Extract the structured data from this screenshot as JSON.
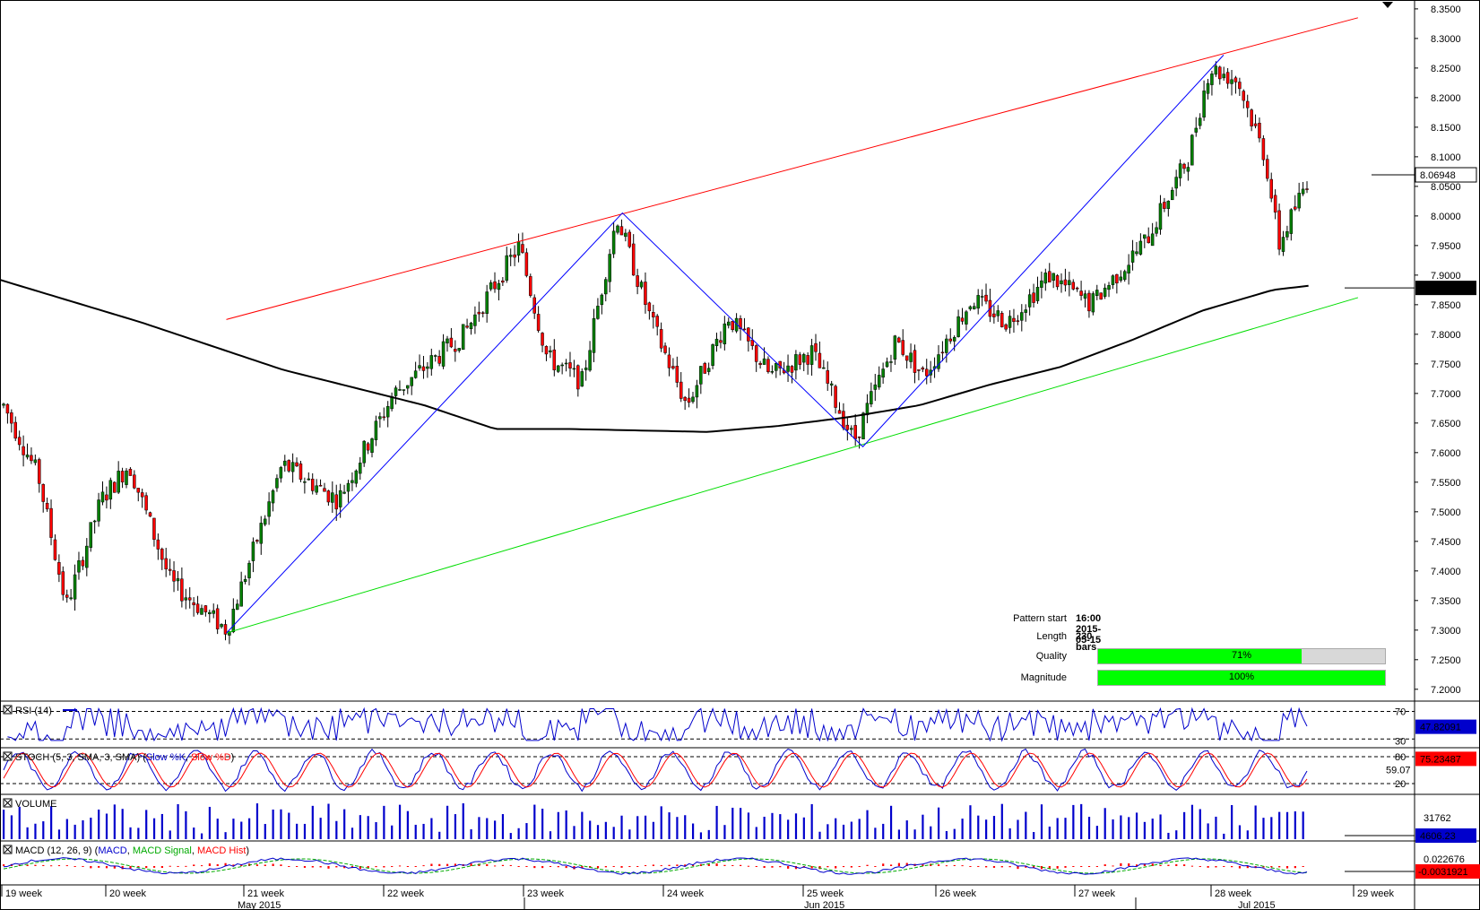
{
  "chart_data": {
    "type": "candlestick",
    "price_axis": {
      "ylim": [
        7.18,
        8.365
      ],
      "ticks": [
        "8.3500",
        "8.3000",
        "8.2500",
        "8.2000",
        "8.1500",
        "8.1000",
        "8.0500",
        "8.0000",
        "7.9500",
        "7.9000",
        "7.8500",
        "7.8000",
        "7.7500",
        "7.7000",
        "7.6500",
        "7.6000",
        "7.5500",
        "7.5000",
        "7.4500",
        "7.4000",
        "7.3500",
        "7.3000",
        "7.2500",
        "7.2000"
      ],
      "current_price": "8.06948",
      "ma_value": "7.87837"
    },
    "x_axis": {
      "week_labels": [
        "19 week",
        "20 week",
        "21 week",
        "22 week",
        "23 week",
        "24 week",
        "25 week",
        "26 week",
        "27 week",
        "28 week",
        "29 week"
      ],
      "month_labels": [
        "May 2015",
        "Jun 2015",
        "Jul 2015"
      ]
    },
    "pattern_lines": {
      "resistance": {
        "start": [
          0.16,
          7.825
        ],
        "end": [
          0.96,
          8.335
        ]
      },
      "support": {
        "start": [
          0.16,
          7.295
        ],
        "end": [
          0.96,
          7.862
        ]
      },
      "zigzag": [
        [
          0.16,
          7.295
        ],
        [
          0.44,
          8.005
        ],
        [
          0.61,
          7.61
        ],
        [
          0.865,
          8.272
        ]
      ]
    },
    "pattern_info": {
      "pattern_start_label": "Pattern start",
      "pattern_start_value": "16:00 2015-05-15",
      "length_label": "Length",
      "length_value": "230 bars",
      "quality_label": "Quality",
      "quality_value": "71%",
      "quality_pct": 71,
      "magnitude_label": "Magnitude",
      "magnitude_value": "100%",
      "magnitude_pct": 100
    },
    "indicators": {
      "rsi": {
        "label": "RSI (14)",
        "levels": [
          "70",
          "30"
        ],
        "value": "47.82091"
      },
      "stoch": {
        "label_prefix": "STOCH (5, 3, SMA, 3, SMA) (",
        "k_label": "Slow %K",
        "d_label": "Slow %D",
        "levels": [
          "80",
          "20"
        ],
        "mid_label": "59.07",
        "value": "75.23487"
      },
      "volume": {
        "label": "VOLUME",
        "scale": "31762",
        "value": "4606.23"
      },
      "macd": {
        "label_prefix": "MACD (12, 26, 9) (",
        "macd_label": "MACD",
        "signal_label": "MACD Signal",
        "hist_label": "MACD Hist",
        "scale": "0.022676",
        "value": "-0.0031921"
      }
    },
    "colors": {
      "resistance": "#ff0000",
      "support": "#00dd00",
      "zigzag": "#0000ff",
      "ma": "#000000",
      "bull": "#008000",
      "bear": "#ff0000",
      "volume": "#0000cc",
      "quality_fill": "#00ff00"
    }
  }
}
